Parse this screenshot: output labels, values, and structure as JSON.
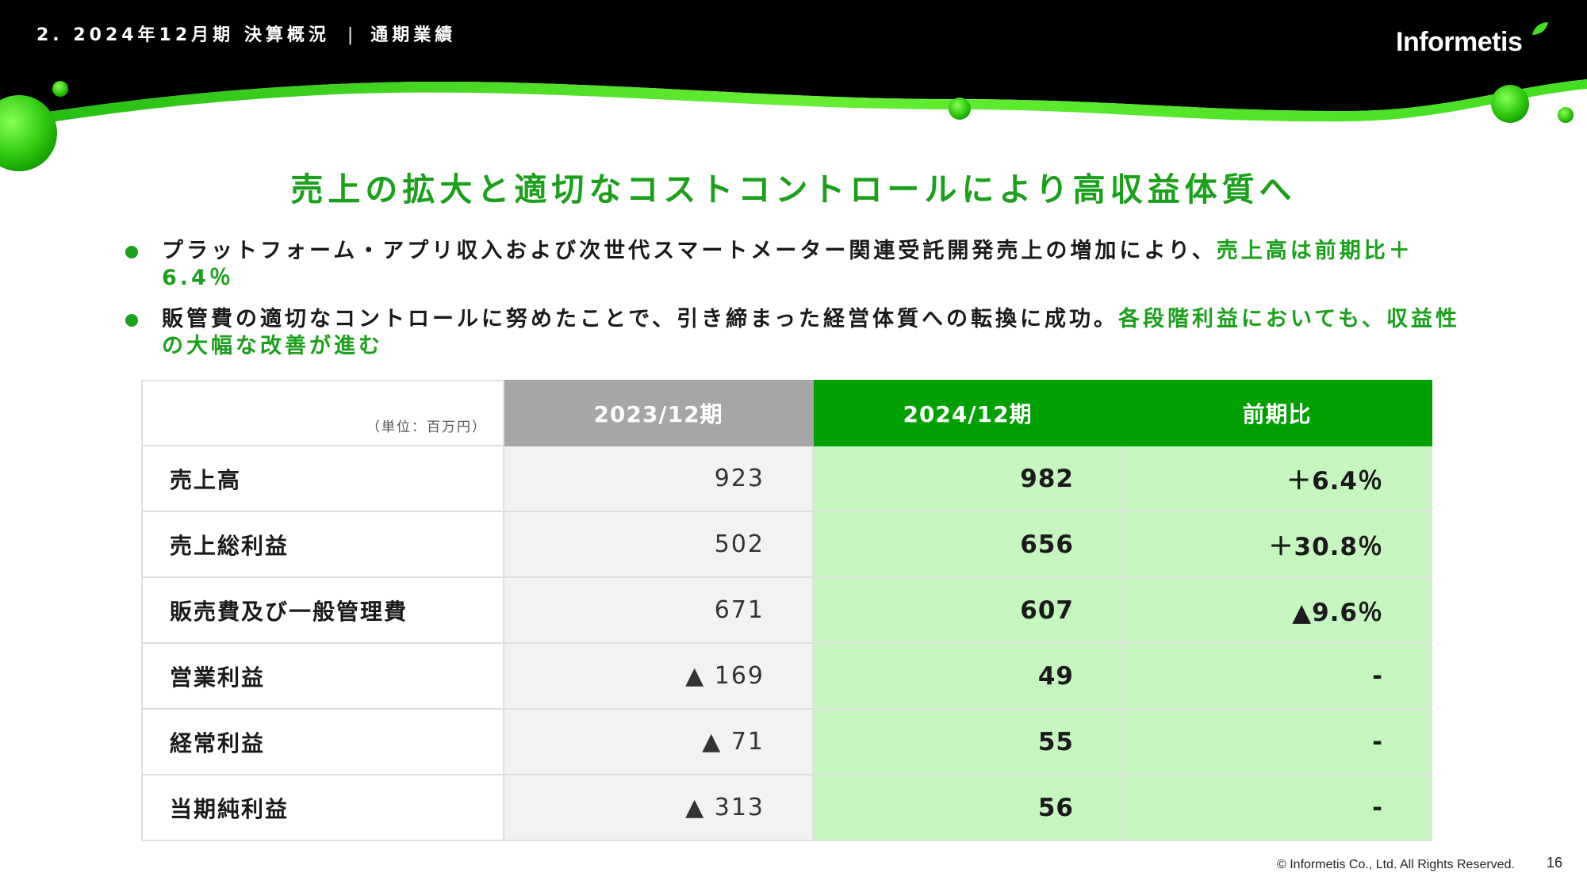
{
  "header": {
    "breadcrumb_section": "2. 2024年12月期 決算概況",
    "breadcrumb_separator": "|",
    "breadcrumb_page": "通期業績",
    "logo_text": "Informetis",
    "band_color": "#000000",
    "accent_color": "#33cc22"
  },
  "headline": "売上の拡大と適切なコストコントロールにより高収益体質へ",
  "bullets": [
    {
      "text": "プラットフォーム・アプリ収入および次世代スマートメーター関連受託開発売上の増加により、",
      "highlight": "売上高は前期比＋6.4％"
    },
    {
      "text": "販管費の適切なコントロールに努めたことで、引き締まった経営体質への転換に成功。",
      "highlight": "各段階利益においても、収益性の大幅な改善が進む"
    }
  ],
  "table": {
    "unit_label": "（単位：百万円）",
    "headers": [
      "2023/12期",
      "2024/12期",
      "前期比"
    ],
    "rows": [
      {
        "label": "売上高",
        "y2023": "923",
        "y2024": "982",
        "change": "＋6.4％"
      },
      {
        "label": "売上総利益",
        "y2023": "502",
        "y2024": "656",
        "change": "＋30.8％"
      },
      {
        "label": "販売費及び一般管理費",
        "y2023": "671",
        "y2024": "607",
        "change": "▲9.6％"
      },
      {
        "label": "営業利益",
        "y2023": "▲ 169",
        "y2024": "49",
        "change": "-"
      },
      {
        "label": "経常利益",
        "y2023": "▲ 71",
        "y2024": "55",
        "change": "-"
      },
      {
        "label": "当期純利益",
        "y2023": "▲ 313",
        "y2024": "56",
        "change": "-"
      }
    ]
  },
  "footer": {
    "copyright": "© Informetis Co., Ltd. All Rights Reserved.",
    "page_number": "16"
  }
}
